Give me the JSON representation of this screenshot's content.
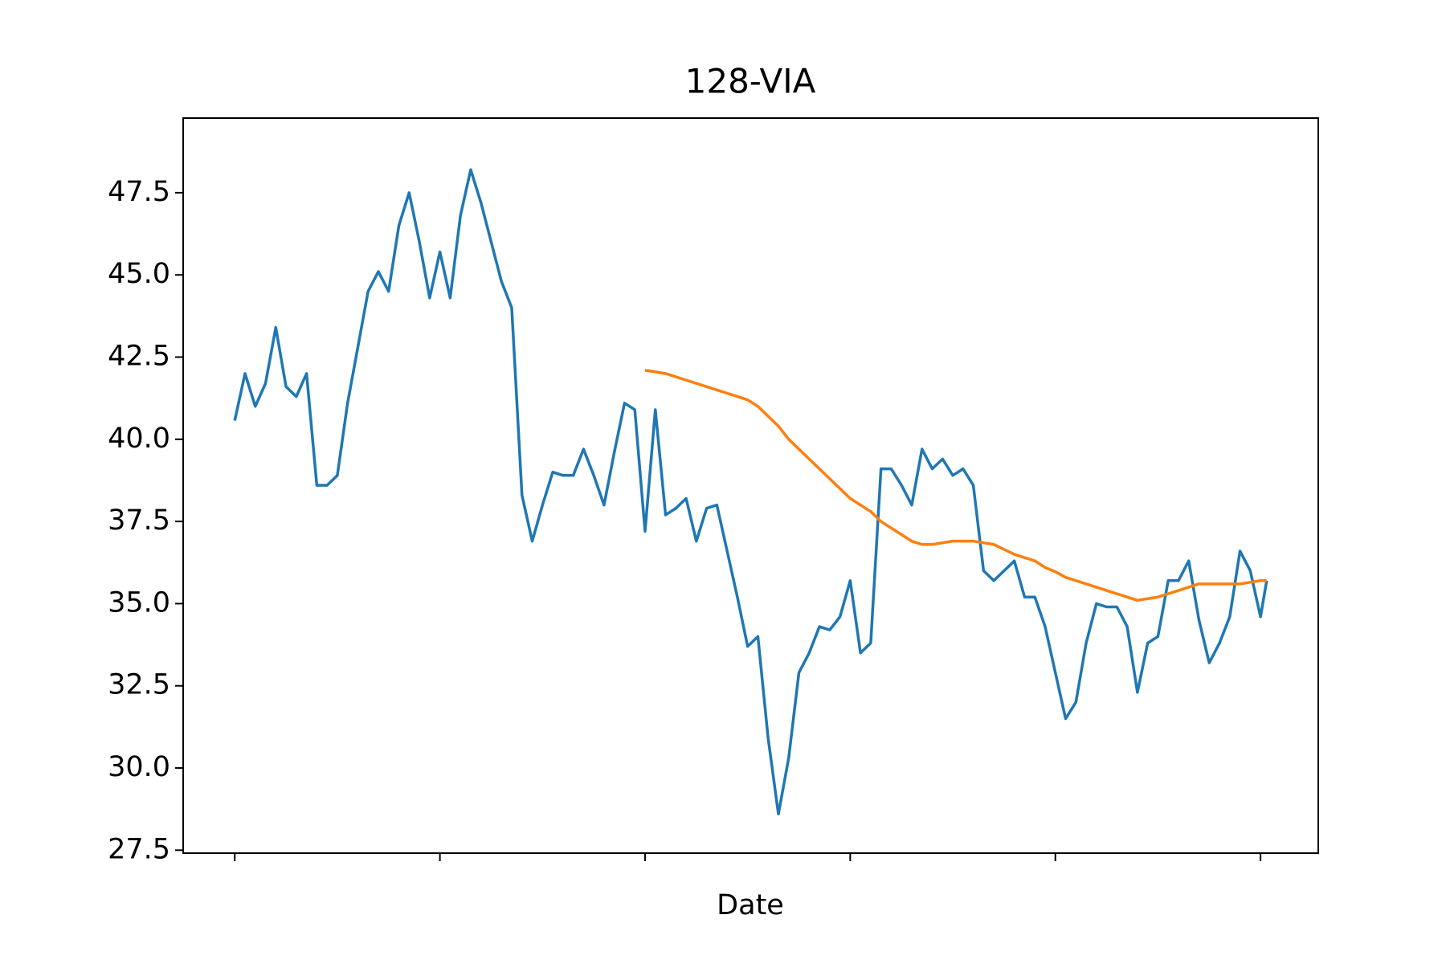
{
  "chart_data": {
    "type": "line",
    "title": "128-VIA",
    "xlabel": "Date",
    "x": [
      0,
      5,
      10,
      15,
      20,
      25,
      30,
      35,
      40,
      45,
      50,
      55,
      60,
      65,
      70,
      75,
      80,
      85,
      90,
      95,
      100,
      105,
      110,
      115,
      120,
      125,
      130,
      135,
      140,
      145,
      150,
      155,
      160,
      165,
      170,
      175,
      180,
      185,
      190,
      195,
      200,
      205,
      210,
      215,
      220,
      225,
      230,
      235,
      240,
      245,
      250,
      255,
      260,
      265,
      270,
      275,
      280,
      285,
      290,
      295,
      300,
      305,
      310,
      315,
      320,
      325,
      330,
      335,
      340,
      345,
      350,
      355,
      360,
      365,
      370,
      375,
      380,
      385,
      390,
      395,
      400,
      405,
      410,
      415,
      420,
      425,
      430,
      435,
      440,
      445,
      450,
      455,
      460,
      465,
      470,
      475,
      480,
      485,
      490,
      495,
      500,
      503
    ],
    "series": [
      {
        "color": "#1f77b4",
        "values": [
          40.57,
          42.0,
          41.0,
          41.7,
          43.4,
          41.6,
          41.3,
          42.0,
          38.6,
          38.6,
          38.9,
          41.1,
          42.8,
          44.5,
          45.1,
          44.5,
          46.5,
          47.5,
          46.0,
          44.3,
          45.7,
          44.3,
          46.8,
          48.2,
          47.2,
          46.0,
          44.8,
          44.0,
          38.3,
          36.9,
          38.0,
          39.0,
          38.9,
          38.9,
          39.7,
          38.9,
          38.0,
          39.6,
          41.1,
          40.9,
          37.2,
          40.9,
          37.7,
          37.9,
          38.2,
          36.9,
          37.9,
          38.0,
          36.6,
          35.2,
          33.7,
          34.0,
          30.9,
          28.6,
          30.3,
          32.9,
          33.5,
          34.3,
          34.2,
          34.6,
          35.7,
          33.5,
          33.8,
          39.1,
          39.1,
          38.6,
          38.0,
          39.7,
          39.1,
          39.4,
          38.9,
          39.1,
          38.6,
          36.0,
          35.7,
          36.0,
          36.3,
          35.2,
          35.2,
          34.3,
          32.9,
          31.5,
          32.0,
          33.8,
          35.0,
          34.9,
          34.9,
          34.3,
          32.3,
          33.8,
          34.0,
          35.7,
          35.7,
          36.3,
          34.5,
          33.2,
          33.8,
          34.6,
          36.6,
          36.0,
          34.6,
          35.7
        ]
      },
      {
        "color": "#ff7f0e",
        "values": [
          null,
          null,
          null,
          null,
          null,
          null,
          null,
          null,
          null,
          null,
          null,
          null,
          null,
          null,
          null,
          null,
          null,
          null,
          null,
          null,
          null,
          null,
          null,
          null,
          null,
          null,
          null,
          null,
          null,
          null,
          null,
          null,
          null,
          null,
          null,
          null,
          null,
          null,
          null,
          null,
          42.1,
          42.05,
          42.0,
          41.9,
          41.8,
          41.7,
          41.6,
          41.5,
          41.4,
          41.3,
          41.2,
          41.0,
          40.7,
          40.4,
          40.0,
          39.7,
          39.4,
          39.1,
          38.8,
          38.5,
          38.2,
          38.0,
          37.8,
          37.5,
          37.3,
          37.1,
          36.9,
          36.8,
          36.8,
          36.85,
          36.9,
          36.9,
          36.9,
          36.85,
          36.8,
          36.65,
          36.5,
          36.4,
          36.3,
          36.1,
          35.97,
          35.8,
          35.7,
          35.6,
          35.5,
          35.4,
          35.3,
          35.2,
          35.1,
          35.15,
          35.2,
          35.3,
          35.4,
          35.5,
          35.6,
          35.6,
          35.6,
          35.6,
          35.6,
          35.65,
          35.7,
          35.7
        ]
      }
    ],
    "xlim": [
      -25.15,
      528.15
    ],
    "xticks": [
      0,
      100,
      200,
      300,
      400,
      500
    ],
    "ylim": [
      27.41,
      49.77
    ],
    "yticks": [
      27.5,
      {
        "value": 30,
        "label": "30.0"
      },
      32.5,
      {
        "value": 35,
        "label": "35.0"
      },
      37.5,
      {
        "value": 40,
        "label": "40.0"
      },
      42.5,
      {
        "value": 45,
        "label": "45.0"
      },
      47.5
    ],
    "grid": false
  }
}
